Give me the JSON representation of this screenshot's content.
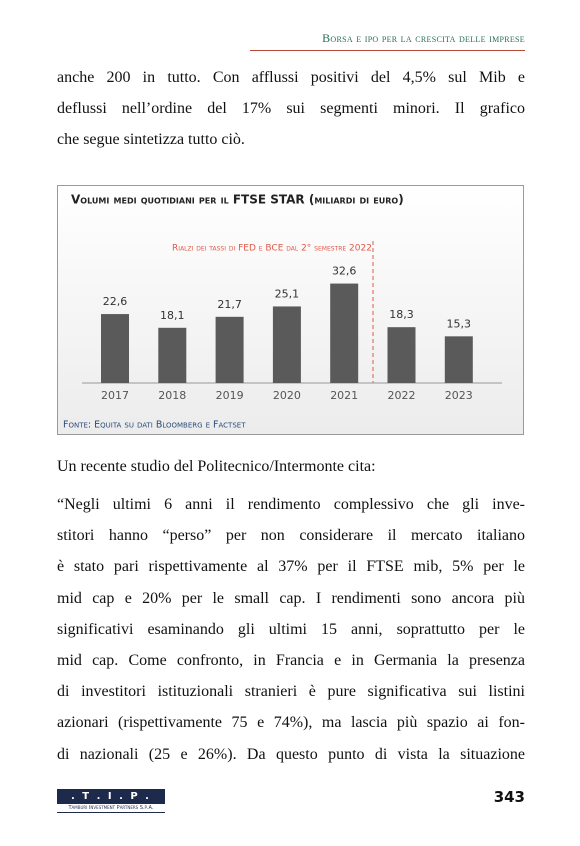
{
  "header": {
    "title": "Borsa e ipo per la crescita delle imprese"
  },
  "paragraphs": [
    [
      "anche 200 in tutto. Con afflussi positivi del 4,5% sul Mib e",
      "deflussi nell’ordine del 17% sui segmenti minori. Il grafico",
      "che segue sintetizza tutto ciò."
    ],
    [
      "Un recente studio del Politecnico/Intermonte cita:"
    ],
    [
      "“Negli ultimi 6 anni il rendimento complessivo che gli inve-",
      "stitori hanno “perso” per non considerare il mercato italiano",
      "è stato pari rispettivamente al 37% per il FTSE mib, 5% per le",
      "mid cap e 20% per le small cap. I rendimenti sono ancora più",
      "significativi esaminando gli ultimi 15 anni, soprattutto per le",
      "mid cap. Come confronto, in Francia e in Germania la presenza",
      "di investitori istituzionali stranieri è pure significativa sui listini",
      "azionari (rispettivamente 75 e 74%), ma lascia più spazio ai fon-",
      "di nazionali (25 e 26%). Da questo punto di vista la situazione"
    ]
  ],
  "chart_data": {
    "type": "bar",
    "title": "Volumi medi quotidiani per il FTSE STAR (miliardi di euro)",
    "annotation": "Rialzi dei tassi di FED e BCE dal 2° semestre 2022",
    "source": "Fonte: Equita su dati Bloomberg e Factset",
    "categories": [
      "2017",
      "2018",
      "2019",
      "2020",
      "2021",
      "2022",
      "2023"
    ],
    "values": [
      22.6,
      18.1,
      21.7,
      25.1,
      32.6,
      18.3,
      15.3
    ],
    "value_labels": [
      "22,6",
      "18,1",
      "21,7",
      "25,1",
      "32,6",
      "18,3",
      "15,3"
    ],
    "color": "#5a5a5a"
  },
  "footer": {
    "logo": ". T . I . P .",
    "company": "Tamburi Investment Partners S.p.A.",
    "page_number": 343
  }
}
